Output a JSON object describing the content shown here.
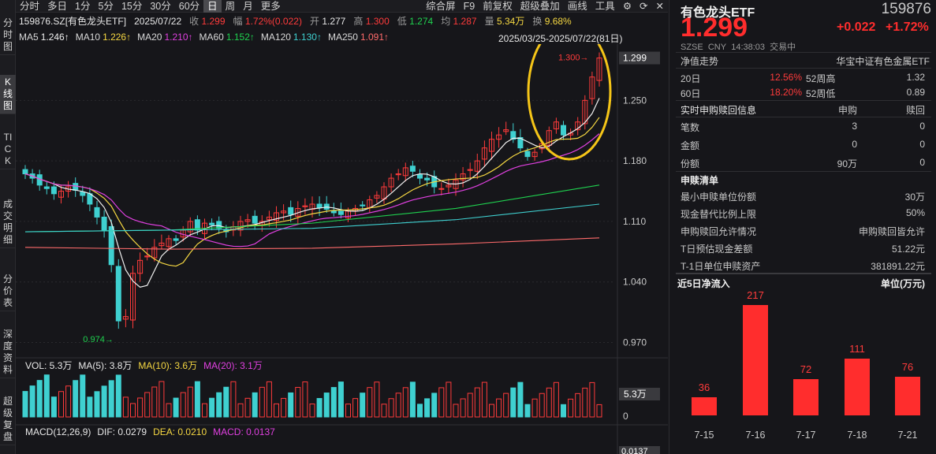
{
  "sidebar": {
    "items": [
      "分时图",
      "K线图",
      "TICK",
      "成交明细",
      "分价表",
      "深度资料",
      "超级复盘"
    ]
  },
  "toolbar": {
    "periods": [
      "分时",
      "多日",
      "1分",
      "5分",
      "15分",
      "30分",
      "60分",
      "日",
      "周",
      "月",
      "更多"
    ],
    "active": "日",
    "right": [
      "综合屏",
      "F9",
      "前复权",
      "超级叠加",
      "画线",
      "工具"
    ]
  },
  "quote_line": {
    "code": "159876.SZ[有色龙头ETF]",
    "date": "2025/07/22",
    "close_label": "收",
    "close": "1.299",
    "change_label": "幅",
    "change": "1.72%(0.022)",
    "open_label": "开",
    "open": "1.277",
    "high_label": "高",
    "high": "1.300",
    "low_label": "低",
    "low": "1.274",
    "avg_label": "均",
    "avg": "1.287",
    "volume_label": "量",
    "volume": "5.34万",
    "turnover_label": "换",
    "turnover": "9.68%"
  },
  "ma_line": [
    {
      "label": "MA5",
      "value": "1.246↑",
      "color": "#f0f0f0"
    },
    {
      "label": "MA10",
      "value": "1.226↑",
      "color": "#f5d742"
    },
    {
      "label": "MA20",
      "value": "1.210↑",
      "color": "#e040e0"
    },
    {
      "label": "MA60",
      "value": "1.152↑",
      "color": "#1fd14f"
    },
    {
      "label": "MA120",
      "value": "1.130↑",
      "color": "#3fd0d0"
    },
    {
      "label": "MA250",
      "value": "1.091↑",
      "color": "#ff6b6b"
    }
  ],
  "date_range": "2025/03/25-2025/07/22(81日)",
  "price_axis": {
    "ticks": [
      "1.299",
      "1.250",
      "1.180",
      "1.110",
      "1.040",
      "0.970"
    ],
    "ylim": [
      0.955,
      1.315
    ]
  },
  "annotations": {
    "high": "1.300",
    "low": "0.974"
  },
  "vol_line": {
    "label": "VOL: 5.3万",
    "ma5": "MA(5): 3.8万",
    "ma10": "MA(10): 3.6万",
    "ma20": "MA(20): 3.1万",
    "axis_tag": "5.3万",
    "axis_zero": "0"
  },
  "macd_line": {
    "label": "MACD(12,26,9)",
    "dif": "DIF: 0.0279",
    "dea": "DEA: 0.0210",
    "macd": "MACD: 0.0137",
    "axis_tag": "0.0137"
  },
  "right_panel": {
    "name": "有色龙头ETF",
    "code": "159876",
    "price": "1.299",
    "change": "+0.022",
    "change_pct": "+1.72%",
    "meta": [
      "SZSE",
      "CNY",
      "14:38:03",
      "交易中"
    ],
    "nav_label": "净值走势",
    "index_name": "华宝中证有色金属ETF",
    "perf": [
      {
        "period": "20日",
        "value": "12.56%",
        "w_label": "52周高",
        "w_value": "1.32"
      },
      {
        "period": "60日",
        "value": "18.20%",
        "w_label": "52周低",
        "w_value": "0.89"
      }
    ],
    "creation": {
      "title": "实时申购赎回信息",
      "col1": "申购",
      "col2": "赎回",
      "rows": [
        {
          "label": "笔数",
          "a": "3",
          "b": "0"
        },
        {
          "label": "金额",
          "a": "0",
          "b": "0"
        },
        {
          "label": "份额",
          "a": "90万",
          "b": "0"
        }
      ]
    },
    "list": {
      "title": "申赎清单",
      "rows": [
        {
          "label": "最小申赎单位份额",
          "value": "30万"
        },
        {
          "label": "现金替代比例上限",
          "value": "50%"
        },
        {
          "label": "申购赎回允许情况",
          "value": "申购赎回皆允许"
        },
        {
          "label": "T日预估现金差额",
          "value": "51.22元"
        },
        {
          "label": "T-1日单位申赎资产",
          "value": "381891.22元"
        }
      ]
    },
    "inflow": {
      "title": "近5日净流入",
      "unit": "单位(万元)"
    }
  },
  "chart_data": [
    {
      "type": "bar",
      "title": "近5日净流入",
      "ylabel": "单位(万元)",
      "categories": [
        "7-15",
        "7-16",
        "7-17",
        "7-18",
        "7-21"
      ],
      "values": [
        36,
        217,
        72,
        111,
        76
      ],
      "colors": [
        "#ff2d2d"
      ]
    },
    {
      "type": "line",
      "title": "",
      "x": [
        "03/25",
        "07/22"
      ],
      "y_ticks": [
        0.97,
        1.04,
        1.11,
        1.18,
        1.25,
        1.299
      ],
      "ylim": [
        0.955,
        1.315
      ],
      "high": 1.3,
      "low": 0.974,
      "last": 1.299
    }
  ]
}
